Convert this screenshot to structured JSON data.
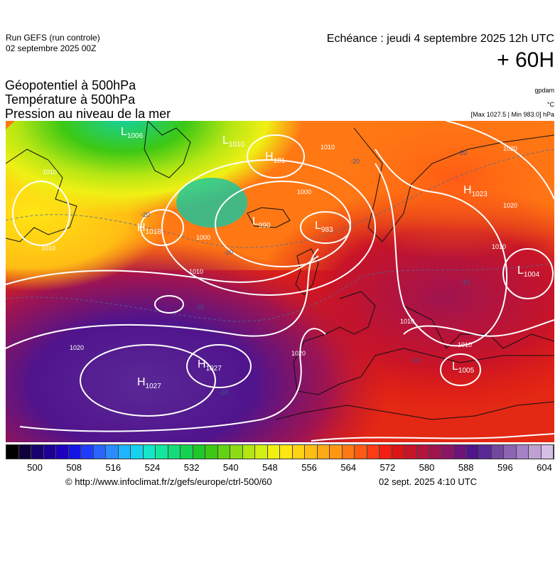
{
  "header": {
    "run_model": "Run GEFS (run controle)",
    "run_date": "02 septembre 2025 00Z",
    "echeance": "Echéance : jeudi 4 septembre 2025 12h UTC",
    "lead_time": "+ 60H"
  },
  "params": [
    "Géopotentiel à 500hPa",
    "Température à 500hPa",
    "Pression au niveau de la mer"
  ],
  "units": {
    "geopotential": "gpdam",
    "temperature": "°C",
    "pressure_range": "[Max 1027.5 | Min 983.0] hPa"
  },
  "map": {
    "pressure_centers": [
      {
        "type": "L",
        "value": "1006"
      },
      {
        "type": "L",
        "value": "1010"
      },
      {
        "type": "H",
        "value": "101"
      },
      {
        "type": "L",
        "value": "990"
      },
      {
        "type": "L",
        "value": "983"
      },
      {
        "type": "H",
        "value": "1018"
      },
      {
        "type": "H",
        "value": "1023"
      },
      {
        "type": "L",
        "value": "1004"
      },
      {
        "type": "H",
        "value": "1027"
      },
      {
        "type": "H",
        "value": "1027"
      },
      {
        "type": "L",
        "value": "1005"
      }
    ],
    "isobar_labels": [
      "1010",
      "1010",
      "1010",
      "1000",
      "1000",
      "1010",
      "1010",
      "1020",
      "1020",
      "1020",
      "1020",
      "1010",
      "1010"
    ],
    "temperature_labels": [
      "-20",
      "-20",
      "-20",
      "-20",
      "-10",
      "-10",
      "-10",
      "-10"
    ]
  },
  "colorbar": {
    "colors": [
      "#000000",
      "#10003a",
      "#1a006e",
      "#1c0096",
      "#1e00be",
      "#1414e6",
      "#1e3cff",
      "#2864ff",
      "#2a8cff",
      "#1eb4ff",
      "#14d2f0",
      "#14e6c8",
      "#14e6a0",
      "#14dc78",
      "#14d250",
      "#1ec828",
      "#3cc814",
      "#64d214",
      "#8cdc14",
      "#b4e614",
      "#d2f014",
      "#f0f014",
      "#ffe614",
      "#ffd214",
      "#ffbe14",
      "#ffaa14",
      "#ff9614",
      "#ff7814",
      "#ff5a14",
      "#ff3c14",
      "#f01e14",
      "#dc1414",
      "#c81428",
      "#b4143c",
      "#a01450",
      "#8c1464",
      "#6e1478",
      "#50148c",
      "#5a2896",
      "#7346a0",
      "#8c64b4",
      "#a582c8",
      "#bea0d2",
      "#d7bee6"
    ],
    "ticks": [
      "500",
      "508",
      "516",
      "524",
      "532",
      "540",
      "548",
      "556",
      "564",
      "572",
      "580",
      "588",
      "596",
      "604"
    ]
  },
  "footer": {
    "credit": "© http://www.infoclimat.fr/z/gefs/europe/ctrl-500/60",
    "generated": "02 sept. 2025  4:10 UTC"
  }
}
